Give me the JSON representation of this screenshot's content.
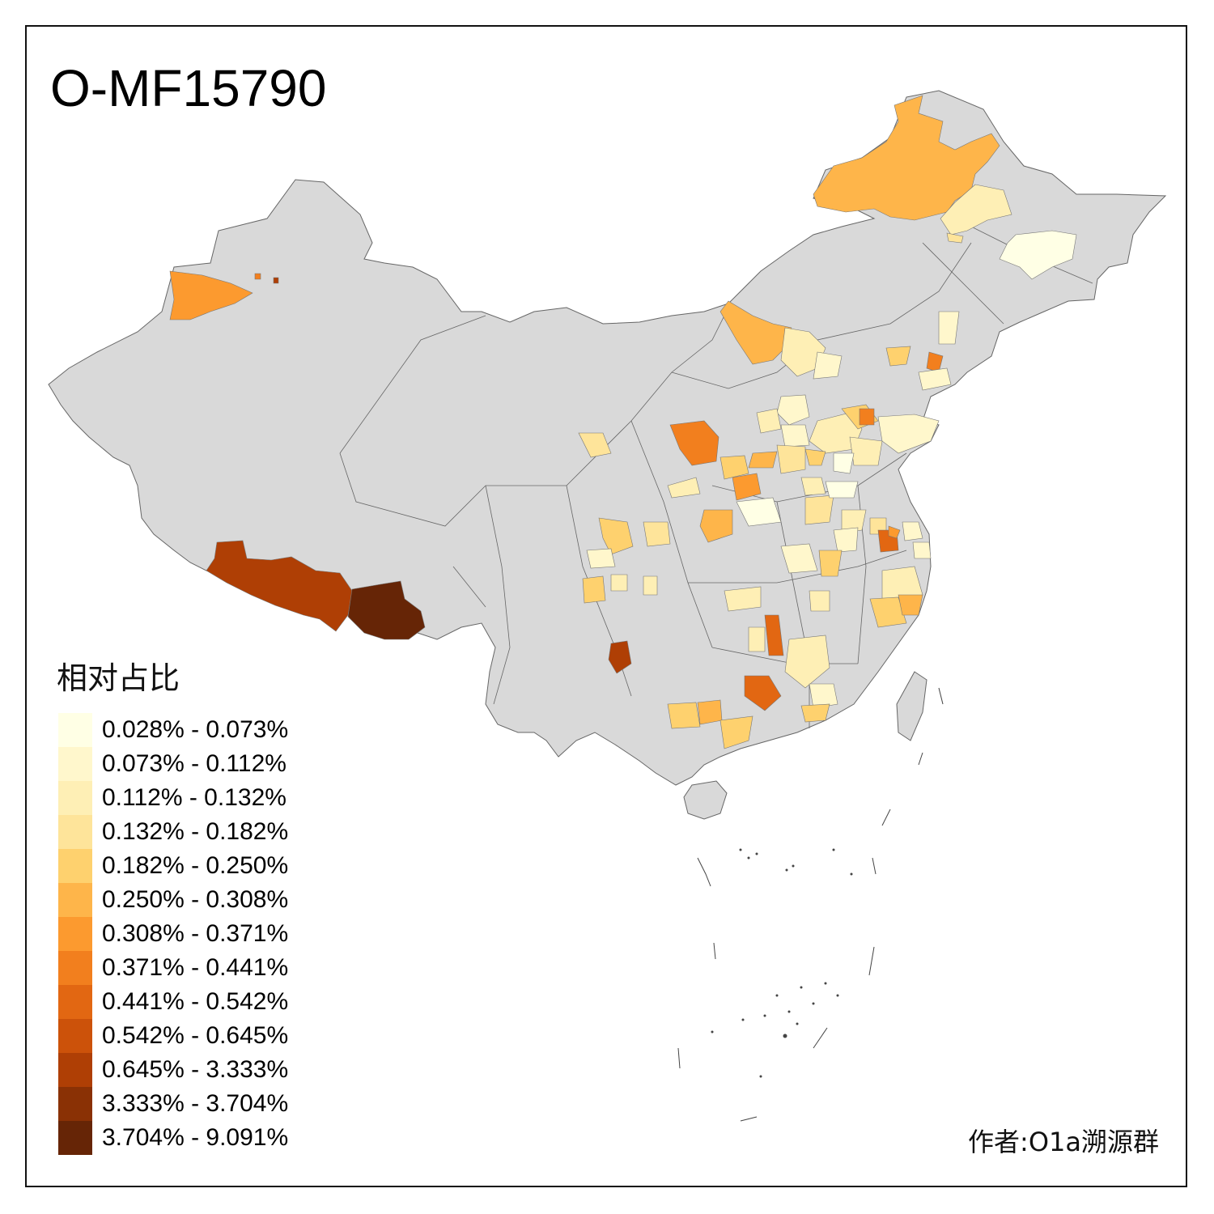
{
  "title": "O-MF15790",
  "legend": {
    "title": "相对占比",
    "items": [
      {
        "label": "0.028% - 0.073%",
        "color": "#FFFFE5"
      },
      {
        "label": "0.073% - 0.112%",
        "color": "#FFF7CC"
      },
      {
        "label": "0.112% - 0.132%",
        "color": "#FEEFB5"
      },
      {
        "label": "0.132% - 0.182%",
        "color": "#FEE49A"
      },
      {
        "label": "0.182% - 0.250%",
        "color": "#FED16E"
      },
      {
        "label": "0.250% - 0.308%",
        "color": "#FEB54A"
      },
      {
        "label": "0.308% - 0.371%",
        "color": "#FC9A2F"
      },
      {
        "label": "0.371% - 0.441%",
        "color": "#F27F1E"
      },
      {
        "label": "0.441% - 0.542%",
        "color": "#E26712"
      },
      {
        "label": "0.542% - 0.645%",
        "color": "#CC520A"
      },
      {
        "label": "0.645% - 3.333%",
        "color": "#AF3F05"
      },
      {
        "label": "3.333% - 3.704%",
        "color": "#8A3105"
      },
      {
        "label": "3.704% - 9.091%",
        "color": "#662506"
      }
    ]
  },
  "author": "作者:O1a溯源群",
  "colors": {
    "no_data": "#D9D9D9",
    "border": "#666666"
  }
}
